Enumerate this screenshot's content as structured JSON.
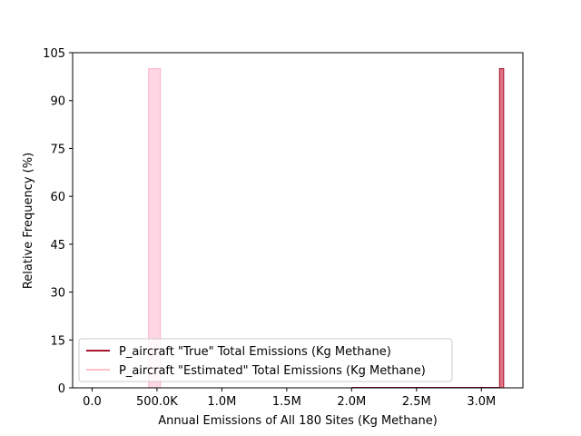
{
  "chart_data": {
    "type": "histogram",
    "title": "",
    "xlabel": "Annual Emissions of All 180 Sites (Kg Methane)",
    "ylabel": "Relative Frequency (%)",
    "xlim": [
      -150000,
      3320000
    ],
    "ylim": [
      0,
      105
    ],
    "xticks": [
      {
        "value": 0,
        "label": "0.0"
      },
      {
        "value": 500000,
        "label": "500.0K"
      },
      {
        "value": 1000000,
        "label": "1.0M"
      },
      {
        "value": 1500000,
        "label": "1.5M"
      },
      {
        "value": 2000000,
        "label": "2.0M"
      },
      {
        "value": 2500000,
        "label": "2.5M"
      },
      {
        "value": 3000000,
        "label": "3.0M"
      }
    ],
    "yticks": [
      0,
      15,
      30,
      45,
      60,
      75,
      90,
      105
    ],
    "grid": false,
    "legend_position": "lower left",
    "series": [
      {
        "name": "P_aircraft \"Estimated\" Total Emissions (Kg Methane)",
        "key": "estimated",
        "bin_start": 435000,
        "bin_end": 527000,
        "value": 100,
        "fill": "#FFD6E3",
        "stroke": "#FFB6C8",
        "legend_color": "#FFC0CB"
      },
      {
        "name": "P_aircraft \"True\" Total Emissions (Kg Methane)",
        "key": "true",
        "bin_start": 3140000,
        "bin_end": 3172000,
        "value": 100,
        "fill": "#E07486",
        "stroke": "#A50E2A",
        "legend_color": "#A8172F",
        "baseline_start": 2000000,
        "baseline_end": 3172000
      }
    ],
    "legend_order": [
      "true",
      "estimated"
    ]
  }
}
